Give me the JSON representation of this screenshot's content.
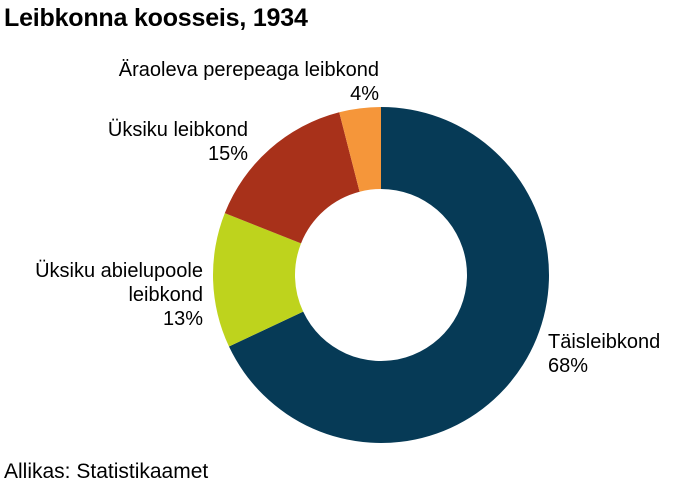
{
  "chart_data": {
    "type": "pie",
    "variant": "donut",
    "title": "Leibkonna koosseis, 1934",
    "categories": [
      "Täisleibkond",
      "Üksiku abielupoole leibkond",
      "Üksiku leibkond",
      "Äraoleva perepeaga leibkond"
    ],
    "values": [
      68,
      13,
      15,
      4
    ],
    "value_labels": [
      "68%",
      "13%",
      "15%",
      "4%"
    ],
    "label_lines": [
      [
        "Täisleibkond",
        "68%"
      ],
      [
        "Üksiku abielupoole",
        "leibkond",
        "13%"
      ],
      [
        "Üksiku leibkond",
        "15%"
      ],
      [
        "Äraoleva perepeaga leibkond",
        "4%"
      ]
    ],
    "colors": [
      "#063a56",
      "#bed31d",
      "#a8311a",
      "#f5963a"
    ],
    "label_placement": "outside"
  },
  "source": "Allikas: Statistikaamet"
}
